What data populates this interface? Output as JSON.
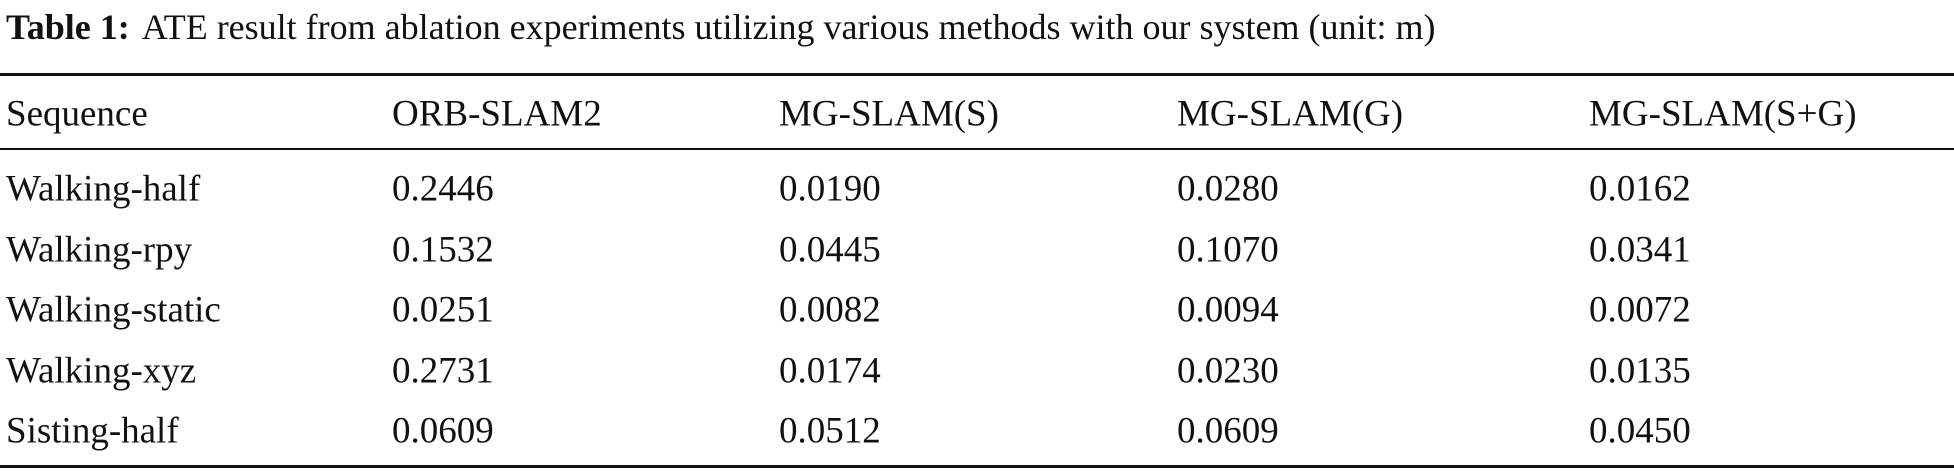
{
  "caption": {
    "label": "Table 1:",
    "text": "ATE result from ablation experiments utilizing various methods with our system (unit: m)"
  },
  "table": {
    "columns": [
      "Sequence",
      "ORB-SLAM2",
      "MG-SLAM(S)",
      "MG-SLAM(G)",
      "MG-SLAM(S+G)"
    ],
    "rows": [
      [
        "Walking-half",
        "0.2446",
        "0.0190",
        "0.0280",
        "0.0162"
      ],
      [
        "Walking-rpy",
        "0.1532",
        "0.0445",
        "0.1070",
        "0.0341"
      ],
      [
        "Walking-static",
        "0.0251",
        "0.0082",
        "0.0094",
        "0.0072"
      ],
      [
        "Walking-xyz",
        "0.2731",
        "0.0174",
        "0.0230",
        "0.0135"
      ],
      [
        "Sisting-half",
        "0.0609",
        "0.0512",
        "0.0609",
        "0.0450"
      ]
    ]
  }
}
